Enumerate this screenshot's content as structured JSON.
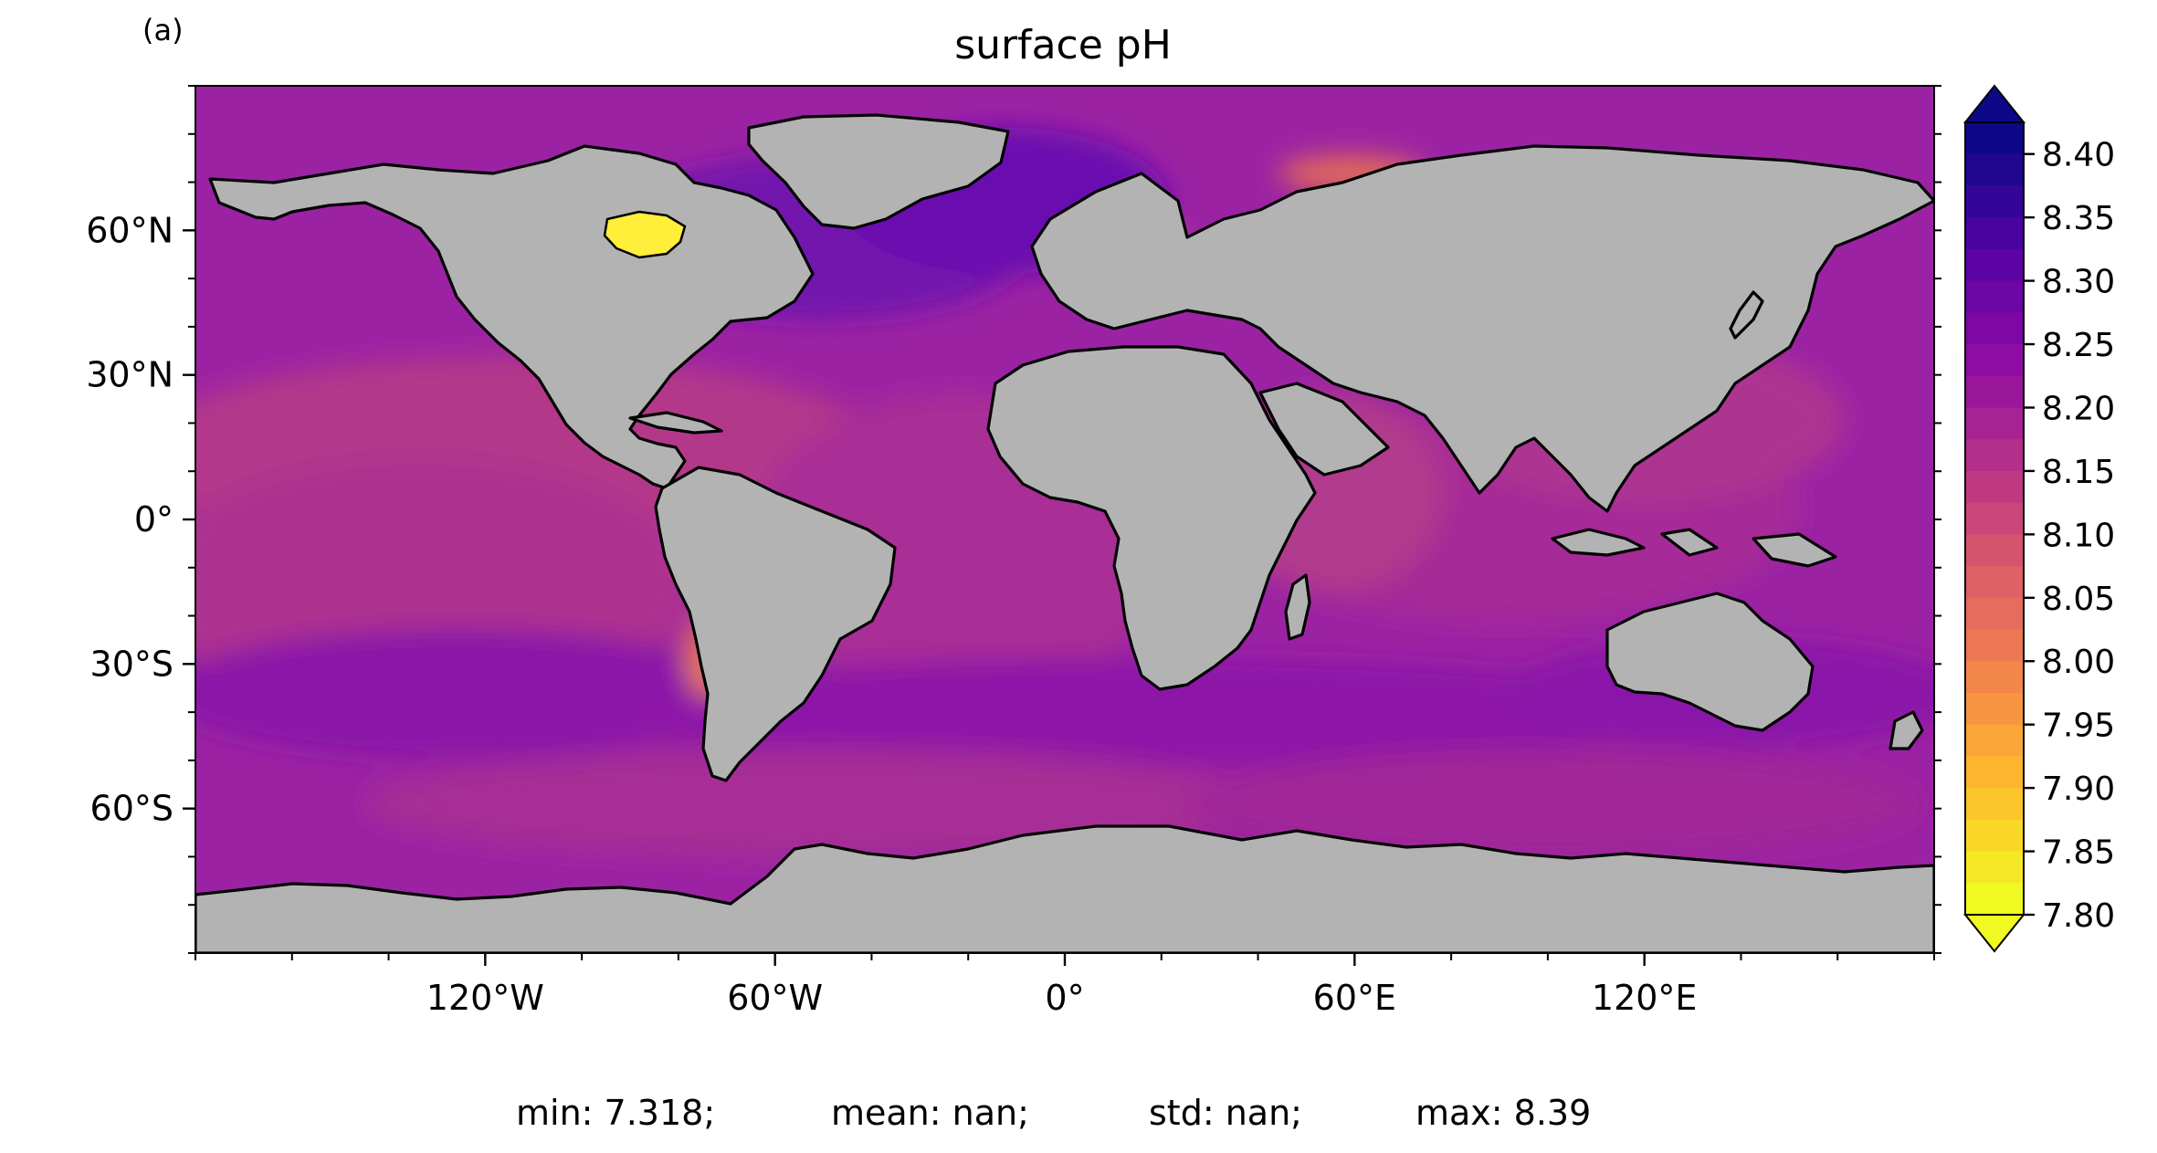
{
  "panel_label": "(a)",
  "title": "surface pH",
  "stats": {
    "min": "min: 7.318;",
    "mean": "mean: nan;",
    "std": "std: nan;",
    "max": "max: 8.39"
  },
  "colors": {
    "land": "#b3b3b3",
    "coastline": "#000000",
    "missing": "#ffffff",
    "ocean_typical": "#9a1da8"
  },
  "map": {
    "projection": "PlateCarree",
    "lon_range": [
      -180,
      180
    ],
    "lat_range": [
      -90,
      90
    ],
    "colormap": "plasma_r",
    "extend": "both"
  },
  "chart_data": {
    "type": "heatmap",
    "title": "surface pH",
    "xlabel": "",
    "ylabel": "",
    "xlim": [
      -180,
      180
    ],
    "ylim": [
      -90,
      90
    ],
    "x_ticks": [
      {
        "value": -120,
        "label": "120°W"
      },
      {
        "value": -60,
        "label": "60°W"
      },
      {
        "value": 0,
        "label": "0°"
      },
      {
        "value": 60,
        "label": "60°E"
      },
      {
        "value": 120,
        "label": "120°E"
      }
    ],
    "y_ticks": [
      {
        "value": 60,
        "label": "60°N"
      },
      {
        "value": 30,
        "label": "30°N"
      },
      {
        "value": 0,
        "label": "0°"
      },
      {
        "value": -30,
        "label": "30°S"
      },
      {
        "value": -60,
        "label": "60°S"
      }
    ],
    "colorbar": {
      "vmin": 7.8,
      "vmax": 8.425,
      "extend": "both",
      "ticks": [
        "8.40",
        "8.35",
        "8.30",
        "8.25",
        "8.20",
        "8.15",
        "8.10",
        "8.05",
        "8.00",
        "7.95",
        "7.90",
        "7.85",
        "7.80"
      ]
    },
    "summary": {
      "min": 7.318,
      "mean": "nan",
      "std": "nan",
      "max": 8.39
    }
  }
}
